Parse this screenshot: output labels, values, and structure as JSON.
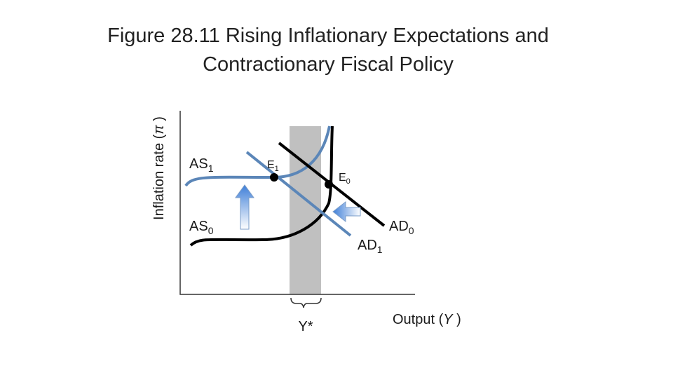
{
  "title": {
    "lines": [
      "Figure 28.11 Rising Inflationary Expectations and",
      "Contractionary Fiscal Policy"
    ]
  },
  "axes": {
    "y_label": {
      "before": "Inflation rate (",
      "symbol": "π",
      "after": " )"
    },
    "x_label": {
      "before": "Output (",
      "symbol": "Y",
      "after": " )"
    },
    "potential": "Y*"
  },
  "curves": [
    {
      "name": "AS",
      "sub": "1"
    },
    {
      "name": "AS",
      "sub": "0"
    },
    {
      "name": "AD",
      "sub": "0"
    },
    {
      "name": "AD",
      "sub": "1"
    }
  ],
  "points": [
    {
      "name": "E",
      "sub": "1"
    },
    {
      "name": "E",
      "sub": "0"
    }
  ]
}
